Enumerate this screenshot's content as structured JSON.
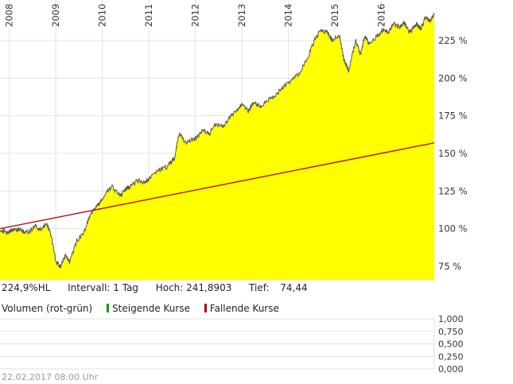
{
  "info": {
    "label": "224,9%HL",
    "interval": "Intervall: 1 Tag",
    "high": "Hoch: 241,8903",
    "low": "Tief:",
    "low_value": "74,44"
  },
  "volume_legend": {
    "title": "Volumen (rot-grün)",
    "rising": "Steigende Kurse",
    "falling": "Fallende Kurse"
  },
  "footer": {
    "timestamp": "22.02.2017 08:00 Uhr"
  },
  "colors": {
    "area": "#ffff00",
    "price_line": "#555555",
    "trend_line": "#b00000",
    "rising": "#00a000",
    "falling": "#b00000",
    "grid": "#e2e2e2"
  },
  "chart_data": [
    {
      "type": "area",
      "x_ticks": [
        "2008",
        "2009",
        "2010",
        "2011",
        "2012",
        "2013",
        "2014",
        "2015",
        "2016"
      ],
      "y_ticks": [
        "75 %",
        "100 %",
        "125 %",
        "150 %",
        "175 %",
        "200 %",
        "225 %"
      ],
      "ylim": [
        66,
        244
      ],
      "xlim": [
        2007.8,
        2017.14
      ],
      "series": [
        {
          "x": [
            2007.8,
            2007.95,
            2008.1,
            2008.25,
            2008.4,
            2008.55,
            2008.7,
            2008.8,
            2008.9,
            2009.0,
            2009.1,
            2009.2,
            2009.3,
            2009.45,
            2009.6,
            2009.75,
            2009.9,
            2010.0,
            2010.2,
            2010.4,
            2010.5,
            2010.6,
            2010.75,
            2010.9,
            2011.0,
            2011.2,
            2011.4,
            2011.55,
            2011.65,
            2011.8,
            2012.0,
            2012.15,
            2012.3,
            2012.45,
            2012.6,
            2012.8,
            2013.0,
            2013.15,
            2013.25,
            2013.4,
            2013.6,
            2013.8,
            2014.0,
            2014.2,
            2014.4,
            2014.55,
            2014.7,
            2014.85,
            2014.95,
            2015.1,
            2015.2,
            2015.3,
            2015.45,
            2015.55,
            2015.65,
            2015.75,
            2015.9,
            2016.05,
            2016.15,
            2016.25,
            2016.4,
            2016.5,
            2016.6,
            2016.75,
            2016.85,
            2016.95,
            2017.05,
            2017.14
          ],
          "values": [
            100,
            97,
            100,
            99,
            97,
            102,
            99,
            104,
            96,
            78,
            75,
            82,
            78,
            92,
            97,
            110,
            115,
            120,
            128,
            122,
            126,
            128,
            132,
            131,
            133,
            139,
            141,
            147,
            163,
            157,
            160,
            165,
            163,
            170,
            168,
            176,
            182,
            178,
            184,
            181,
            186,
            191,
            197,
            202,
            212,
            224,
            232,
            230,
            225,
            228,
            212,
            205,
            225,
            216,
            228,
            222,
            228,
            232,
            230,
            236,
            234,
            237,
            230,
            236,
            233,
            240,
            238,
            242
          ]
        },
        {
          "x": [
            2007.8,
            2017.14
          ],
          "values": [
            100,
            157
          ]
        }
      ]
    },
    {
      "type": "bar",
      "y_ticks": [
        "1,000",
        "0,750",
        "0,500",
        "0,250",
        "0,000"
      ],
      "ylim": [
        0,
        1
      ],
      "values": []
    }
  ]
}
